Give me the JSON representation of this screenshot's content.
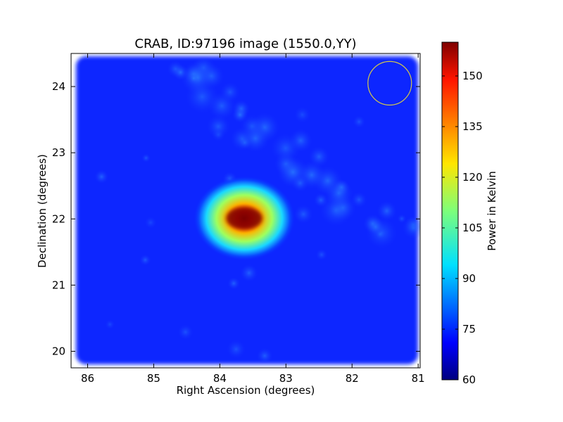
{
  "chart_data": {
    "type": "heatmap",
    "title": "CRAB, ID:97196 image (1550.0,YY)",
    "xlabel": "Right Ascension (degrees)",
    "ylabel": "Declination (degrees)",
    "xlim": [
      86.25,
      80.97
    ],
    "ylim": [
      19.75,
      24.5
    ],
    "x_ticks": [
      86,
      85,
      84,
      83,
      82,
      81
    ],
    "y_ticks": [
      20,
      21,
      22,
      23,
      24
    ],
    "colorbar": {
      "label": "Power in Kelvin",
      "range": [
        60,
        160
      ],
      "ticks": [
        60,
        75,
        90,
        105,
        120,
        135,
        150
      ],
      "colormap": "jet"
    },
    "source": {
      "ra": 83.63,
      "dec": 22.01,
      "peak_power": 160,
      "background_power": 66
    },
    "beam_circle": {
      "ra": 81.43,
      "dec": 24.05,
      "color": "#d4c84a"
    },
    "grid": false
  }
}
